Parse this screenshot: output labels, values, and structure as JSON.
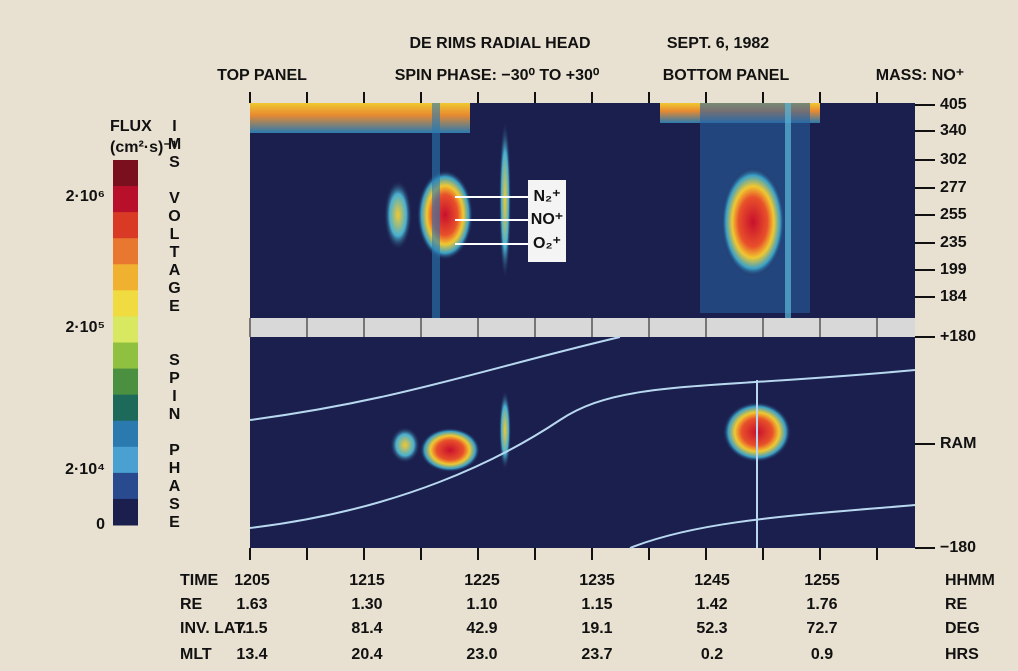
{
  "header": {
    "title": "DE RIMS RADIAL HEAD",
    "date": "SEPT. 6, 1982",
    "labels": [
      "TOP PANEL",
      "SPIN PHASE: −30⁰ TO +30⁰",
      "BOTTOM PANEL",
      "MASS: NO⁺"
    ]
  },
  "colorbar": {
    "title": "FLUX",
    "unit": "(cm²·s)⁻¹",
    "labels": [
      "2·10⁶",
      "2·10⁵",
      "2·10⁴",
      "0"
    ]
  },
  "vertical_labels": [
    "IMS VOLTAGE",
    "SPIN PHASE"
  ],
  "top_axis": [
    "405",
    "340",
    "302",
    "277",
    "255",
    "235",
    "199",
    "184"
  ],
  "bottom_axis": [
    "+180",
    "RAM",
    "−180"
  ],
  "ions": [
    "N₂⁺",
    "NO⁺",
    "O₂⁺"
  ],
  "table": {
    "rows": [
      [
        "TIME",
        "1205",
        "1215",
        "1225",
        "1235",
        "1245",
        "1255",
        "HHMM"
      ],
      [
        "RE",
        "1.63",
        "1.30",
        "1.10",
        "1.15",
        "1.42",
        "1.76",
        "RE"
      ],
      [
        "INV. LAT.",
        "71.5",
        "81.4",
        "42.9",
        "19.1",
        "52.3",
        "72.7",
        "DEG"
      ],
      [
        "MLT",
        "13.4",
        "20.4",
        "23.0",
        "23.7",
        "0.2",
        "0.9",
        "HRS"
      ]
    ]
  }
}
